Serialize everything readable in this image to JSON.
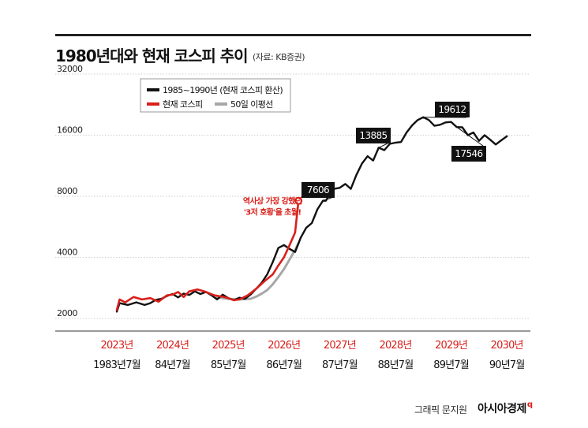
{
  "header": {
    "title": "1980년대와 현재 코스피 추이",
    "source": "(자료: KB증권)"
  },
  "footer": {
    "credit": "그래픽 문지원",
    "brand": "아시아경제",
    "brand_mark": "q"
  },
  "colors": {
    "series_1985": "#111111",
    "series_current": "#d8201b",
    "series_ma50": "#a7a7a7",
    "axis_current": "#d8201b",
    "axis_1980s": "#111111"
  },
  "chart_data": {
    "type": "line",
    "title": "1980년대와 현재 코스피 추이",
    "y_scale": "log",
    "ylim": [
      2000,
      32000
    ],
    "y_ticks": [
      "2000",
      "4000",
      "8000",
      "16000",
      "32000"
    ],
    "x_axis_current": [
      "2023년",
      "2024년",
      "2025년",
      "2026년",
      "2027년",
      "2028년",
      "2029년",
      "2030년"
    ],
    "x_axis_1980s": [
      "1983년7월",
      "84년7월",
      "85년7월",
      "86년7월",
      "87년7월",
      "88년7월",
      "89년7월",
      "90년7월"
    ],
    "legend": [
      {
        "label": "1985~1990년 (현재 코스피 환산)",
        "color": "#111111"
      },
      {
        "label": "현재 코스피",
        "color": "#d8201b"
      },
      {
        "label": "50일 이평선",
        "color": "#a7a7a7"
      }
    ],
    "series": [
      {
        "name": "1985~1990년 (현재 코스피 환산)",
        "x": [
          0.0,
          0.05,
          0.2,
          0.35,
          0.5,
          0.6,
          0.7,
          0.8,
          0.9,
          1.0,
          1.1,
          1.2,
          1.3,
          1.4,
          1.5,
          1.6,
          1.7,
          1.8,
          1.9,
          2.0,
          2.1,
          2.2,
          2.3,
          2.4,
          2.5,
          2.6,
          2.7,
          2.8,
          2.9,
          3.0,
          3.1,
          3.2,
          3.3,
          3.4,
          3.5,
          3.6,
          3.7,
          3.75,
          3.8,
          3.9,
          4.0,
          4.1,
          4.2,
          4.3,
          4.4,
          4.5,
          4.6,
          4.7,
          4.8,
          4.9,
          5.0,
          5.1,
          5.2,
          5.3,
          5.4,
          5.5,
          5.6,
          5.7,
          5.8,
          5.9,
          6.0,
          6.1,
          6.2,
          6.3,
          6.4,
          6.5,
          6.6,
          6.7,
          6.8,
          6.9,
          7.0
        ],
        "values": [
          2160,
          2380,
          2330,
          2400,
          2330,
          2380,
          2470,
          2500,
          2580,
          2640,
          2540,
          2650,
          2610,
          2720,
          2640,
          2700,
          2600,
          2480,
          2620,
          2520,
          2460,
          2530,
          2500,
          2620,
          2800,
          3000,
          3300,
          3800,
          4450,
          4600,
          4400,
          4250,
          5000,
          5600,
          5900,
          6900,
          7606,
          7600,
          8000,
          8700,
          8800,
          9200,
          8700,
          10200,
          11600,
          12600,
          12000,
          13885,
          13500,
          14500,
          14700,
          14800,
          16500,
          17900,
          19000,
          19612,
          19000,
          17800,
          18000,
          18500,
          18600,
          17546,
          17500,
          16000,
          16500,
          15000,
          16000,
          15200,
          14400,
          15100,
          15800
        ],
        "callouts": [
          {
            "label": "7606",
            "value": 7606,
            "x": 3.7
          },
          {
            "label": "13885",
            "value": 13885,
            "x": 4.7
          },
          {
            "label": "19612",
            "value": 19612,
            "x": 5.5
          },
          {
            "label": "17546",
            "value": 17546,
            "x": 6.1
          }
        ]
      },
      {
        "name": "현재 코스피",
        "x": [
          0.0,
          0.05,
          0.15,
          0.3,
          0.45,
          0.6,
          0.75,
          0.9,
          1.0,
          1.1,
          1.2,
          1.3,
          1.45,
          1.6,
          1.75,
          1.9,
          2.0,
          2.1,
          2.2,
          2.35,
          2.5,
          2.65,
          2.8,
          2.9,
          3.0,
          3.1,
          3.2,
          3.26
        ],
        "values": [
          2200,
          2480,
          2400,
          2550,
          2480,
          2520,
          2420,
          2600,
          2620,
          2700,
          2550,
          2720,
          2780,
          2700,
          2600,
          2560,
          2520,
          2460,
          2480,
          2600,
          2800,
          3050,
          3300,
          3650,
          4000,
          4600,
          5300,
          7600
        ]
      },
      {
        "name": "50일 이평선",
        "x": [
          1.8,
          2.0,
          2.2,
          2.4,
          2.5,
          2.6,
          2.7,
          2.8,
          2.9,
          3.0,
          3.1,
          3.2,
          3.26
        ],
        "values": [
          2540,
          2500,
          2480,
          2500,
          2560,
          2650,
          2760,
          2950,
          3200,
          3500,
          3900,
          4350,
          4700
        ]
      }
    ],
    "annotation": {
      "line1": "역사상 가장 강했던",
      "line2": "'3저 호황'을 초월!",
      "color": "#d8201b"
    }
  }
}
